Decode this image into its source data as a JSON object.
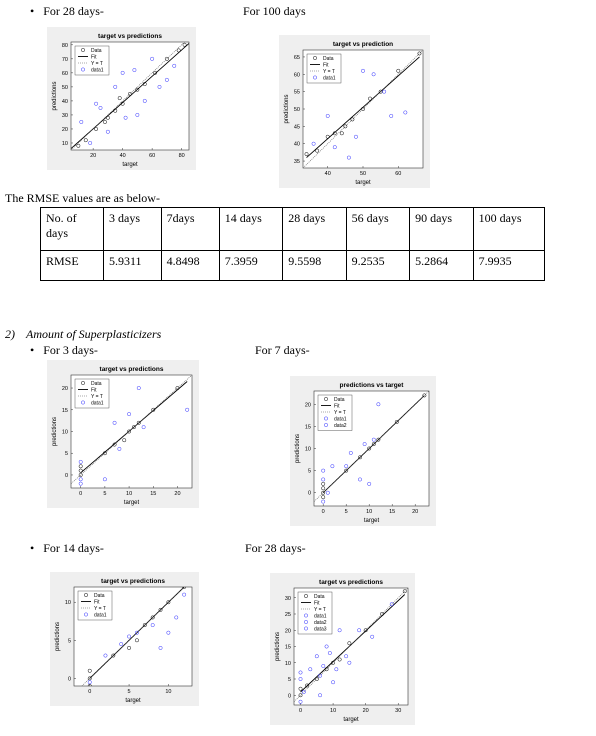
{
  "text": {
    "b1": "For 28 days-",
    "b2": "For 100 days",
    "rmse_intro": "The RMSE values are as below-",
    "section_num": "2)",
    "section_title": "Amount of Superplasticizers",
    "b3": "For 3 days-",
    "b4": "For 7 days-",
    "b5": "For 14 days-",
    "b6": "For 28 days-"
  },
  "table": {
    "rows": [
      [
        "No. of days",
        "3 days",
        "7days",
        "14 days",
        "28 days",
        "56 days",
        "90 days",
        "100 days"
      ],
      [
        "RMSE",
        "5.9311",
        "4.8498",
        "7.3959",
        "9.5598",
        "9.2535",
        "5.2864",
        "7.9935"
      ]
    ]
  },
  "plots": [
    {
      "type": "scatter",
      "title": "target vs predictions",
      "xlabel": "target",
      "ylabel": "predictions",
      "xlim": [
        5,
        85
      ],
      "ylim": [
        5,
        82
      ],
      "xticks": [
        20,
        40,
        60,
        80
      ],
      "yticks": [
        10,
        20,
        30,
        40,
        50,
        60,
        70,
        80
      ],
      "series": [
        {
          "name": "Data",
          "color": "#000000",
          "x": [
            10,
            15,
            22,
            28,
            35,
            40,
            45,
            50,
            55,
            62,
            70,
            78,
            82,
            30,
            38
          ],
          "y": [
            8,
            12,
            20,
            25,
            33,
            38,
            45,
            48,
            52,
            60,
            70,
            76,
            80,
            28,
            42
          ]
        },
        {
          "name": "Fit",
          "color": "#000000",
          "x": [
            5,
            85
          ],
          "y": [
            6,
            81
          ]
        },
        {
          "name": "Y = T",
          "color": "#555555",
          "x": [
            5,
            82
          ],
          "y": [
            5,
            82
          ]
        },
        {
          "name": "data1",
          "color": "#3030ff",
          "x": [
            12,
            18,
            25,
            30,
            35,
            42,
            48,
            55,
            60,
            65,
            70,
            75,
            22,
            50,
            40
          ],
          "y": [
            25,
            10,
            35,
            18,
            50,
            28,
            62,
            40,
            70,
            50,
            55,
            65,
            38,
            30,
            60
          ]
        }
      ]
    },
    {
      "type": "scatter",
      "title": "target vs prediction",
      "xlabel": "target",
      "ylabel": "predictions",
      "xlim": [
        33,
        67
      ],
      "ylim": [
        33,
        67
      ],
      "xticks": [
        40,
        50,
        60
      ],
      "yticks": [
        35,
        40,
        45,
        50,
        55,
        60,
        65
      ],
      "series": [
        {
          "name": "Data",
          "color": "#000000",
          "x": [
            34,
            37,
            40,
            42,
            44,
            45,
            47,
            50,
            52,
            55,
            60,
            66
          ],
          "y": [
            37,
            38,
            42,
            43,
            43,
            45,
            47,
            50,
            53,
            55,
            61,
            66
          ]
        },
        {
          "name": "Fit",
          "color": "#000000",
          "x": [
            34,
            66
          ],
          "y": [
            36,
            65
          ]
        },
        {
          "name": "Y = T",
          "color": "#555555",
          "x": [
            33,
            67
          ],
          "y": [
            33,
            67
          ]
        },
        {
          "name": "data1",
          "color": "#3030ff",
          "x": [
            36,
            40,
            42,
            46,
            50,
            53,
            56,
            58,
            62,
            48
          ],
          "y": [
            40,
            48,
            39,
            36,
            61,
            60,
            55,
            48,
            49,
            42
          ]
        }
      ]
    },
    {
      "type": "scatter",
      "title": "target vs predictions",
      "xlabel": "target",
      "ylabel": "predictions",
      "xlim": [
        -2,
        23
      ],
      "ylim": [
        -3,
        23
      ],
      "xticks": [
        0,
        5,
        10,
        15,
        20
      ],
      "yticks": [
        0,
        5,
        10,
        15,
        20
      ],
      "series": [
        {
          "name": "Data",
          "color": "#000000",
          "x": [
            0,
            0,
            0,
            5,
            7,
            9,
            10,
            11,
            12,
            15,
            20
          ],
          "y": [
            0,
            1,
            2,
            5,
            7,
            8,
            10,
            11,
            12,
            15,
            20
          ]
        },
        {
          "name": "Fit",
          "color": "#000000",
          "x": [
            0,
            22
          ],
          "y": [
            0.5,
            21.5
          ]
        },
        {
          "name": "Y = T",
          "color": "#555555",
          "x": [
            -2,
            23
          ],
          "y": [
            -2,
            23
          ]
        },
        {
          "name": "data1",
          "color": "#3030ff",
          "x": [
            0,
            0,
            0,
            5,
            7,
            10,
            12,
            22,
            8,
            13
          ],
          "y": [
            -1,
            3,
            -2,
            -1,
            12,
            14,
            20,
            15,
            6,
            11
          ]
        }
      ]
    },
    {
      "type": "scatter",
      "title": "predictions vs target",
      "xlabel": "target",
      "ylabel": "predictions",
      "xlim": [
        -2,
        23
      ],
      "ylim": [
        -3,
        23
      ],
      "xticks": [
        0,
        5,
        10,
        15,
        20
      ],
      "yticks": [
        0,
        5,
        10,
        15,
        20
      ],
      "series": [
        {
          "name": "Data",
          "color": "#000000",
          "x": [
            0,
            0,
            0,
            0,
            5,
            8,
            10,
            11,
            12,
            16,
            22
          ],
          "y": [
            0,
            1,
            2,
            -1,
            5,
            8,
            10,
            11,
            12,
            16,
            22
          ]
        },
        {
          "name": "Fit",
          "color": "#000000",
          "x": [
            0,
            22
          ],
          "y": [
            0,
            22
          ]
        },
        {
          "name": "Y = T",
          "color": "#555555",
          "x": [
            -2,
            23
          ],
          "y": [
            -2,
            23
          ]
        },
        {
          "name": "data1",
          "color": "#3030ff",
          "x": [
            0,
            0,
            0,
            2,
            6,
            8,
            10,
            12,
            5
          ],
          "y": [
            3,
            5,
            -2,
            6,
            9,
            3,
            2,
            20,
            6
          ]
        },
        {
          "name": "data2",
          "color": "#3030ff",
          "x": [
            1,
            11,
            9
          ],
          "y": [
            0,
            12,
            11
          ]
        }
      ]
    },
    {
      "type": "scatter",
      "title": "target vs predictions",
      "xlabel": "target",
      "ylabel": "predictions",
      "xlim": [
        -2,
        13
      ],
      "ylim": [
        -1,
        12
      ],
      "xticks": [
        0,
        5,
        10
      ],
      "yticks": [
        0,
        5,
        10
      ],
      "series": [
        {
          "name": "Data",
          "color": "#000000",
          "x": [
            0,
            0,
            3,
            5,
            6,
            7,
            8,
            9,
            10,
            12,
            0
          ],
          "y": [
            0,
            1,
            3,
            4,
            5,
            7,
            8,
            9,
            10,
            12,
            -1
          ]
        },
        {
          "name": "Fit",
          "color": "#000000",
          "x": [
            0,
            12
          ],
          "y": [
            0,
            12
          ]
        },
        {
          "name": "Y = T",
          "color": "#555555",
          "x": [
            -1,
            12
          ],
          "y": [
            -1,
            12
          ]
        },
        {
          "name": "data1",
          "color": "#3030ff",
          "x": [
            0,
            2,
            4,
            6,
            8,
            9,
            10,
            11,
            5,
            12
          ],
          "y": [
            -0.5,
            3,
            4.5,
            6,
            7,
            4,
            6,
            8,
            5.5,
            11
          ]
        }
      ]
    },
    {
      "type": "scatter",
      "title": "target vs predictions",
      "xlabel": "target",
      "ylabel": "predictions",
      "xlim": [
        -2,
        33
      ],
      "ylim": [
        -3,
        33
      ],
      "xticks": [
        0,
        10,
        20,
        30
      ],
      "yticks": [
        0,
        5,
        10,
        15,
        20,
        25,
        30
      ],
      "series": [
        {
          "name": "Data",
          "color": "#000000",
          "x": [
            0,
            0,
            2,
            5,
            8,
            10,
            12,
            15,
            20,
            25,
            32
          ],
          "y": [
            0,
            2,
            3,
            5,
            8,
            10,
            11,
            16,
            20,
            25,
            32
          ]
        },
        {
          "name": "Fit",
          "color": "#000000",
          "x": [
            0,
            32
          ],
          "y": [
            1,
            31
          ]
        },
        {
          "name": "Y = T",
          "color": "#555555",
          "x": [
            -2,
            33
          ],
          "y": [
            -2,
            33
          ]
        },
        {
          "name": "data1",
          "color": "#3030ff",
          "x": [
            0,
            0,
            3,
            5,
            6,
            8,
            10,
            12,
            15,
            18,
            22,
            28
          ],
          "y": [
            5,
            -2,
            8,
            12,
            0,
            15,
            4,
            20,
            10,
            20,
            18,
            28
          ]
        },
        {
          "name": "data2",
          "color": "#3030ff",
          "x": [
            0,
            7,
            9,
            14
          ],
          "y": [
            7,
            9,
            13,
            12
          ]
        },
        {
          "name": "data3",
          "color": "#3030ff",
          "x": [
            1,
            6,
            11
          ],
          "y": [
            1,
            6,
            8
          ]
        }
      ]
    }
  ]
}
